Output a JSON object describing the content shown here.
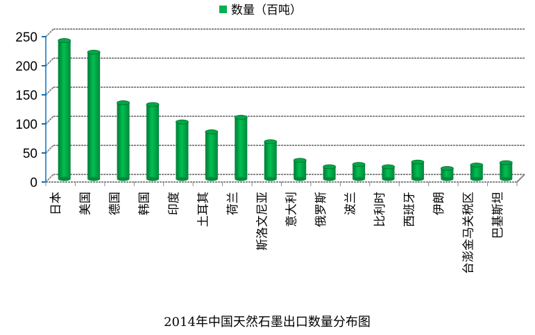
{
  "chart_data": {
    "type": "bar",
    "title": "2014年中国天然石墨出口数量分布图",
    "legend": {
      "label": "数量（百吨）",
      "position": "top",
      "color": "#00b050"
    },
    "xlabel": "",
    "ylabel": "",
    "ylim": [
      0,
      250
    ],
    "yticks": [
      0,
      50,
      100,
      150,
      200,
      250
    ],
    "grid": true,
    "categories": [
      "日本",
      "美国",
      "德国",
      "韩国",
      "印度",
      "土耳其",
      "荷兰",
      "斯洛文尼亚",
      "意大利",
      "俄罗斯",
      "波兰",
      "比利时",
      "西班牙",
      "伊朗",
      "台澎金马关税区",
      "巴基斯坦"
    ],
    "series": [
      {
        "name": "数量（百吨）",
        "values": [
          238,
          218,
          131,
          128,
          98,
          81,
          106,
          64,
          32,
          21,
          25,
          21,
          29,
          18,
          24,
          28
        ]
      }
    ]
  }
}
